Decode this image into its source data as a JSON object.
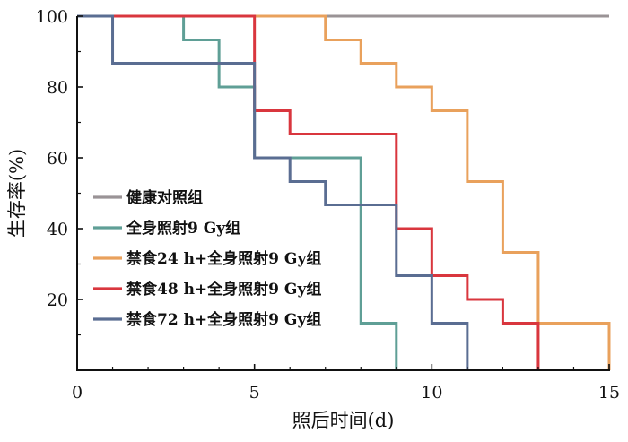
{
  "chart_data": {
    "type": "line",
    "step": true,
    "xlabel": "照后时间(d)",
    "ylabel": "生存率(%)",
    "xlim": [
      0,
      15
    ],
    "ylim": [
      0,
      100
    ],
    "xticks": [
      "0",
      "5",
      "10",
      "15"
    ],
    "yticks": [
      "20",
      "40",
      "60",
      "80",
      "100"
    ],
    "grid": false,
    "legend_position": "lower-left",
    "series": [
      {
        "name": "健康对照组",
        "color": "#9a9396",
        "points": [
          [
            0,
            100
          ],
          [
            15,
            100
          ]
        ]
      },
      {
        "name": "全身照射9 Gy组",
        "color": "#5f9f96",
        "points": [
          [
            0,
            100
          ],
          [
            3,
            93.3
          ],
          [
            4,
            80
          ],
          [
            5,
            60
          ],
          [
            8,
            13.3
          ],
          [
            9,
            0
          ]
        ]
      },
      {
        "name": "禁食24 h+全身照射9 Gy组",
        "color": "#e9a15c",
        "points": [
          [
            0,
            100
          ],
          [
            7,
            93.3
          ],
          [
            8,
            86.7
          ],
          [
            9,
            80
          ],
          [
            10,
            73.3
          ],
          [
            11,
            53.3
          ],
          [
            12,
            33.3
          ],
          [
            13,
            13.3
          ],
          [
            15,
            0
          ]
        ]
      },
      {
        "name": "禁食48 h+全身照射9 Gy组",
        "color": "#d9363e",
        "points": [
          [
            0,
            100
          ],
          [
            5,
            73.3
          ],
          [
            6,
            66.7
          ],
          [
            9,
            40
          ],
          [
            10,
            26.7
          ],
          [
            11,
            20
          ],
          [
            12,
            13.3
          ],
          [
            13,
            0
          ]
        ]
      },
      {
        "name": "禁食72 h+全身照射9 Gy组",
        "color": "#5a6d92",
        "points": [
          [
            0,
            100
          ],
          [
            1,
            86.7
          ],
          [
            5,
            60
          ],
          [
            6,
            53.3
          ],
          [
            7,
            46.7
          ],
          [
            9,
            26.7
          ],
          [
            10,
            13.3
          ],
          [
            11,
            0
          ]
        ]
      }
    ]
  }
}
